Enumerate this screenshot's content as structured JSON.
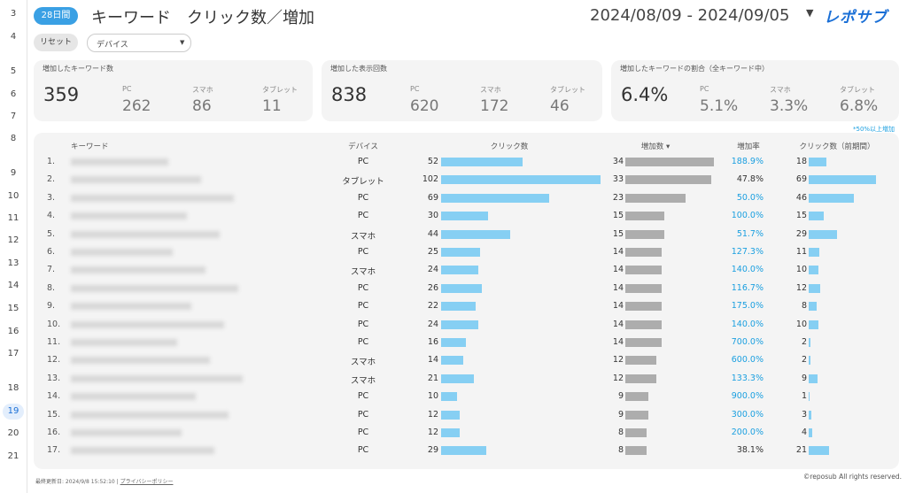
{
  "gutter": [
    "3",
    "4",
    "5",
    "6",
    "7",
    "8",
    "9",
    "10",
    "11",
    "12",
    "13",
    "14",
    "15",
    "16",
    "17",
    "18",
    "19",
    "20",
    "21"
  ],
  "header": {
    "period": "28日間",
    "title": "キーワード　クリック数／増加",
    "date_range": "2024/08/09 - 2024/09/05",
    "logo": "レポサブ"
  },
  "filters": {
    "reset": "リセット",
    "device": "デバイス"
  },
  "kpis": [
    {
      "title": "増加したキーワード数",
      "total": "359",
      "items": [
        {
          "label": "PC",
          "value": "262"
        },
        {
          "label": "スマホ",
          "value": "86"
        },
        {
          "label": "タブレット",
          "value": "11"
        }
      ]
    },
    {
      "title": "増加した表示回数",
      "total": "838",
      "items": [
        {
          "label": "PC",
          "value": "620"
        },
        {
          "label": "スマホ",
          "value": "172"
        },
        {
          "label": "タブレット",
          "value": "46"
        }
      ]
    },
    {
      "title": "増加したキーワードの割合（全キーワード中）",
      "total": "6.4%",
      "items": [
        {
          "label": "PC",
          "value": "5.1%"
        },
        {
          "label": "スマホ",
          "value": "3.3%"
        },
        {
          "label": "タブレット",
          "value": "6.8%"
        }
      ]
    }
  ],
  "note": {
    "text": "*50%以上増加",
    "threshold": 50
  },
  "table": {
    "columns": [
      "キーワード",
      "デバイス",
      "クリック数",
      "増加数 ▾",
      "増加率",
      "クリック数（前期間）"
    ],
    "rows": [
      {
        "rank": "1.",
        "device": "PC",
        "clicks": 52,
        "increase": 34,
        "rate": {
          "value": 188.9,
          "label": "188.9%"
        },
        "prev_clicks": 18
      },
      {
        "rank": "2.",
        "device": "タブレット",
        "clicks": 102,
        "increase": 33,
        "rate": {
          "value": 47.8,
          "label": "47.8%"
        },
        "prev_clicks": 69
      },
      {
        "rank": "3.",
        "device": "PC",
        "clicks": 69,
        "increase": 23,
        "rate": {
          "value": 50.0,
          "label": "50.0%"
        },
        "prev_clicks": 46
      },
      {
        "rank": "4.",
        "device": "PC",
        "clicks": 30,
        "increase": 15,
        "rate": {
          "value": 100.0,
          "label": "100.0%"
        },
        "prev_clicks": 15
      },
      {
        "rank": "5.",
        "device": "スマホ",
        "clicks": 44,
        "increase": 15,
        "rate": {
          "value": 51.7,
          "label": "51.7%"
        },
        "prev_clicks": 29
      },
      {
        "rank": "6.",
        "device": "PC",
        "clicks": 25,
        "increase": 14,
        "rate": {
          "value": 127.3,
          "label": "127.3%"
        },
        "prev_clicks": 11
      },
      {
        "rank": "7.",
        "device": "スマホ",
        "clicks": 24,
        "increase": 14,
        "rate": {
          "value": 140.0,
          "label": "140.0%"
        },
        "prev_clicks": 10
      },
      {
        "rank": "8.",
        "device": "PC",
        "clicks": 26,
        "increase": 14,
        "rate": {
          "value": 116.7,
          "label": "116.7%"
        },
        "prev_clicks": 12
      },
      {
        "rank": "9.",
        "device": "PC",
        "clicks": 22,
        "increase": 14,
        "rate": {
          "value": 175.0,
          "label": "175.0%"
        },
        "prev_clicks": 8
      },
      {
        "rank": "10.",
        "device": "PC",
        "clicks": 24,
        "increase": 14,
        "rate": {
          "value": 140.0,
          "label": "140.0%"
        },
        "prev_clicks": 10
      },
      {
        "rank": "11.",
        "device": "PC",
        "clicks": 16,
        "increase": 14,
        "rate": {
          "value": 700.0,
          "label": "700.0%"
        },
        "prev_clicks": 2
      },
      {
        "rank": "12.",
        "device": "スマホ",
        "clicks": 14,
        "increase": 12,
        "rate": {
          "value": 600.0,
          "label": "600.0%"
        },
        "prev_clicks": 2
      },
      {
        "rank": "13.",
        "device": "スマホ",
        "clicks": 21,
        "increase": 12,
        "rate": {
          "value": 133.3,
          "label": "133.3%"
        },
        "prev_clicks": 9
      },
      {
        "rank": "14.",
        "device": "PC",
        "clicks": 10,
        "increase": 9,
        "rate": {
          "value": 900.0,
          "label": "900.0%"
        },
        "prev_clicks": 1
      },
      {
        "rank": "15.",
        "device": "PC",
        "clicks": 12,
        "increase": 9,
        "rate": {
          "value": 300.0,
          "label": "300.0%"
        },
        "prev_clicks": 3
      },
      {
        "rank": "16.",
        "device": "PC",
        "clicks": 12,
        "increase": 8,
        "rate": {
          "value": 200.0,
          "label": "200.0%"
        },
        "prev_clicks": 4
      },
      {
        "rank": "17.",
        "device": "PC",
        "clicks": 29,
        "increase": 8,
        "rate": {
          "value": 38.1,
          "label": "38.1%"
        },
        "prev_clicks": 21
      }
    ]
  },
  "footer": {
    "updated": "最終更新日: 2024/9/8 15:52:10",
    "privacy": "プライバシーポリシー",
    "copyright": "©reposub All rights reserved."
  }
}
